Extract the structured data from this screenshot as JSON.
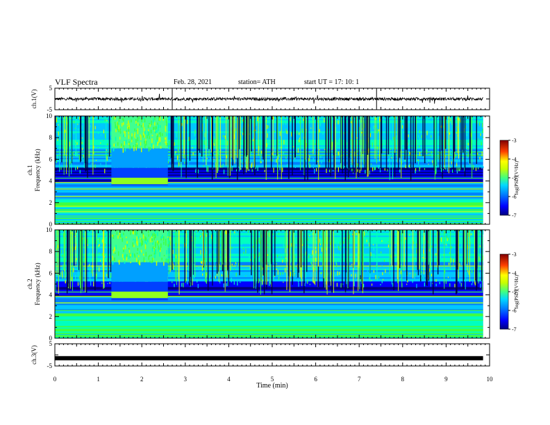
{
  "header": {
    "title": "VLF Spectra",
    "date": "Feb. 28, 2021",
    "station": "station= ATH",
    "start": "start UT =   17: 10: 1"
  },
  "chart_data": [
    {
      "type": "line",
      "panel": "ch1-waveform",
      "ylabel": "ch.1(V)",
      "ylim": [
        -5,
        5
      ],
      "yticks": [
        "5",
        "-5"
      ],
      "xlim": [
        0,
        10
      ],
      "note_values": "noisy signal near 0 V with small spikes",
      "baseline": 0
    },
    {
      "type": "heatmap",
      "panel": "ch1-spectrogram",
      "ylabel": "Frequency (kHz)",
      "ylabel_ch": "ch.1",
      "ylim": [
        0,
        10
      ],
      "yticks": [
        "0",
        "2",
        "4",
        "6",
        "8",
        "10"
      ],
      "xlim": [
        0,
        10
      ],
      "colorbar": {
        "label": "log(PSD)(V²/Hz)",
        "ticks": [
          "-3",
          "-4",
          "-5",
          "-6",
          "-7"
        ],
        "range": [
          -7,
          -3
        ]
      },
      "bright_block": {
        "t_start": 1.3,
        "t_end": 2.6,
        "f_low": 3.6,
        "f_high": 10
      },
      "data_end_min": 9.85
    },
    {
      "type": "heatmap",
      "panel": "ch2-spectrogram",
      "ylabel": "Frequency (kHz)",
      "ylabel_ch": "ch.2",
      "ylim": [
        0,
        10
      ],
      "yticks": [
        "0",
        "2",
        "4",
        "6",
        "8",
        "10"
      ],
      "xlim": [
        0,
        10
      ],
      "colorbar": {
        "label": "log(PSD)(V²/Hz)",
        "ticks": [
          "-3",
          "-4",
          "-5",
          "-6",
          "-7"
        ],
        "range": [
          -7,
          -3
        ]
      },
      "bright_block": {
        "t_start": 1.3,
        "t_end": 2.6,
        "f_low": 3.5,
        "f_high": 10
      },
      "data_end_min": 9.85
    },
    {
      "type": "line",
      "panel": "ch3-waveform",
      "ylabel": "ch.3(V)",
      "ylim": [
        -5,
        5
      ],
      "yticks": [
        "5",
        "-5"
      ],
      "xlim": [
        0,
        10
      ],
      "xticks": [
        "0",
        "1",
        "2",
        "3",
        "4",
        "5",
        "6",
        "7",
        "8",
        "9",
        "10"
      ],
      "xlabel": "Time (min)",
      "baseline": -1.5
    }
  ],
  "colors": {
    "colormap": [
      "#000080",
      "#0000ff",
      "#0080ff",
      "#00c8ff",
      "#00ffc0",
      "#40ff40",
      "#c8ff00",
      "#ffff00",
      "#ff8000",
      "#ff0000",
      "#800000"
    ],
    "background": "#00007a",
    "trace": "#000000"
  }
}
